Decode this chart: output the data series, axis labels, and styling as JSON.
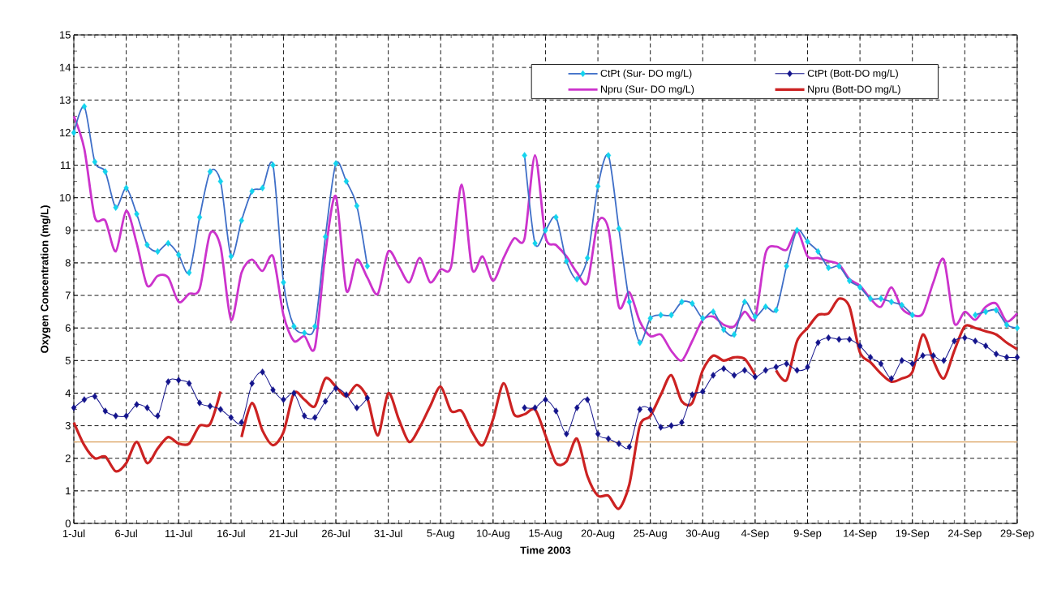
{
  "chart_data": {
    "type": "line",
    "xlabel": "Time 2003",
    "ylabel": "Oxygen Concentration (mg/L)",
    "x": [
      "2003-07-01",
      "2003-07-02",
      "2003-07-03",
      "2003-07-04",
      "2003-07-05",
      "2003-07-06",
      "2003-07-07",
      "2003-07-08",
      "2003-07-09",
      "2003-07-10",
      "2003-07-11",
      "2003-07-12",
      "2003-07-13",
      "2003-07-14",
      "2003-07-15",
      "2003-07-16",
      "2003-07-17",
      "2003-07-18",
      "2003-07-19",
      "2003-07-20",
      "2003-07-21",
      "2003-07-22",
      "2003-07-23",
      "2003-07-24",
      "2003-07-25",
      "2003-07-26",
      "2003-07-27",
      "2003-07-28",
      "2003-07-29",
      "2003-07-30",
      "2003-07-31",
      "2003-08-01",
      "2003-08-02",
      "2003-08-03",
      "2003-08-04",
      "2003-08-05",
      "2003-08-06",
      "2003-08-07",
      "2003-08-08",
      "2003-08-09",
      "2003-08-10",
      "2003-08-11",
      "2003-08-12",
      "2003-08-13",
      "2003-08-14",
      "2003-08-15",
      "2003-08-16",
      "2003-08-17",
      "2003-08-18",
      "2003-08-19",
      "2003-08-20",
      "2003-08-21",
      "2003-08-22",
      "2003-08-23",
      "2003-08-24",
      "2003-08-25",
      "2003-08-26",
      "2003-08-27",
      "2003-08-28",
      "2003-08-29",
      "2003-08-30",
      "2003-08-31",
      "2003-09-01",
      "2003-09-02",
      "2003-09-03",
      "2003-09-04",
      "2003-09-05",
      "2003-09-06",
      "2003-09-07",
      "2003-09-08",
      "2003-09-09",
      "2003-09-10",
      "2003-09-11",
      "2003-09-12",
      "2003-09-13",
      "2003-09-14",
      "2003-09-15",
      "2003-09-16",
      "2003-09-17",
      "2003-09-18",
      "2003-09-19",
      "2003-09-20",
      "2003-09-21",
      "2003-09-22",
      "2003-09-23",
      "2003-09-24",
      "2003-09-25",
      "2003-09-26",
      "2003-09-27",
      "2003-09-28",
      "2003-09-29"
    ],
    "xlim": [
      "2003-07-01",
      "2003-09-29"
    ],
    "xticks": [
      {
        "value": "2003-07-01",
        "label": "1-Jul"
      },
      {
        "value": "2003-07-06",
        "label": "6-Jul"
      },
      {
        "value": "2003-07-11",
        "label": "11-Jul"
      },
      {
        "value": "2003-07-16",
        "label": "16-Jul"
      },
      {
        "value": "2003-07-21",
        "label": "21-Jul"
      },
      {
        "value": "2003-07-26",
        "label": "26-Jul"
      },
      {
        "value": "2003-07-31",
        "label": "31-Jul"
      },
      {
        "value": "2003-08-05",
        "label": "5-Aug"
      },
      {
        "value": "2003-08-10",
        "label": "10-Aug"
      },
      {
        "value": "2003-08-15",
        "label": "15-Aug"
      },
      {
        "value": "2003-08-20",
        "label": "20-Aug"
      },
      {
        "value": "2003-08-25",
        "label": "25-Aug"
      },
      {
        "value": "2003-08-30",
        "label": "30-Aug"
      },
      {
        "value": "2003-09-04",
        "label": "4-Sep"
      },
      {
        "value": "2003-09-09",
        "label": "9-Sep"
      },
      {
        "value": "2003-09-14",
        "label": "14-Sep"
      },
      {
        "value": "2003-09-19",
        "label": "19-Sep"
      },
      {
        "value": "2003-09-24",
        "label": "24-Sep"
      },
      {
        "value": "2003-09-29",
        "label": "29-Sep"
      }
    ],
    "ylim": [
      0,
      15
    ],
    "yticks": [
      0,
      1,
      2,
      3,
      4,
      5,
      6,
      7,
      8,
      9,
      10,
      11,
      12,
      13,
      14,
      15
    ],
    "grid": true,
    "legend": "top right",
    "series": [
      {
        "name": "CtPt (Sur- DO mg/L)",
        "color": "#3f6fc8",
        "marker": "diamond",
        "values": [
          12.0,
          12.8,
          11.1,
          10.8,
          9.7,
          10.3,
          9.5,
          8.55,
          8.35,
          8.6,
          8.25,
          7.7,
          9.4,
          10.8,
          10.5,
          8.2,
          9.3,
          10.2,
          10.3,
          11.0,
          7.4,
          6.05,
          5.85,
          6.05,
          8.8,
          11.05,
          10.5,
          9.75,
          7.9,
          null,
          null,
          null,
          null,
          null,
          null,
          null,
          null,
          null,
          null,
          null,
          null,
          null,
          null,
          11.3,
          8.6,
          9.0,
          9.4,
          8.05,
          7.5,
          8.15,
          10.35,
          11.3,
          9.05,
          6.8,
          5.55,
          6.3,
          6.4,
          6.4,
          6.8,
          6.75,
          6.3,
          6.5,
          5.95,
          5.8,
          6.8,
          6.35,
          6.65,
          6.55,
          7.9,
          9.0,
          8.65,
          8.35,
          7.85,
          7.9,
          7.45,
          7.25,
          6.9,
          6.9,
          6.8,
          6.7,
          6.4,
          null,
          null,
          null,
          null,
          null,
          6.4,
          6.5,
          6.55,
          6.1,
          6.0
        ]
      },
      {
        "name": "CtPt (Bott-DO mg/L)",
        "color": "#14148c",
        "marker": "diamond",
        "values": [
          3.55,
          3.8,
          3.9,
          3.45,
          3.3,
          3.3,
          3.65,
          3.55,
          3.3,
          4.35,
          4.4,
          4.3,
          3.7,
          3.6,
          3.5,
          3.25,
          3.1,
          4.3,
          4.65,
          4.1,
          3.8,
          4.0,
          3.3,
          3.25,
          3.75,
          4.15,
          3.95,
          3.55,
          3.85,
          null,
          null,
          null,
          null,
          null,
          null,
          null,
          null,
          null,
          null,
          null,
          null,
          null,
          null,
          3.55,
          3.55,
          3.8,
          3.45,
          2.75,
          3.55,
          3.8,
          2.75,
          2.6,
          2.45,
          2.35,
          3.5,
          3.5,
          2.95,
          3.0,
          3.1,
          3.95,
          4.05,
          4.55,
          4.75,
          4.55,
          4.7,
          4.5,
          4.7,
          4.8,
          4.9,
          4.7,
          4.8,
          5.55,
          5.7,
          5.65,
          5.65,
          5.45,
          5.1,
          4.9,
          4.45,
          5.0,
          4.9,
          5.15,
          5.15,
          5.0,
          5.6,
          5.7,
          5.6,
          5.45,
          5.2,
          5.1,
          5.1
        ]
      },
      {
        "name": "Npru (Sur- DO mg/L)",
        "color": "#cc33cc",
        "marker": "none",
        "values": [
          12.5,
          11.5,
          9.4,
          9.3,
          8.35,
          9.6,
          8.6,
          7.3,
          7.6,
          7.55,
          6.8,
          7.05,
          7.2,
          8.9,
          8.5,
          6.25,
          7.7,
          8.1,
          7.75,
          8.2,
          6.4,
          5.6,
          5.75,
          5.4,
          8.3,
          10.05,
          7.15,
          8.1,
          7.55,
          7.05,
          8.35,
          7.9,
          7.4,
          8.15,
          7.4,
          7.8,
          7.9,
          10.4,
          7.8,
          8.2,
          7.45,
          8.15,
          8.75,
          8.75,
          11.3,
          8.8,
          8.55,
          8.2,
          7.7,
          7.4,
          9.25,
          9.05,
          6.65,
          7.1,
          6.2,
          5.75,
          5.8,
          5.3,
          5.0,
          5.6,
          6.25,
          6.35,
          6.1,
          6.05,
          6.5,
          6.3,
          8.3,
          8.5,
          8.4,
          9.0,
          8.2,
          8.15,
          8.05,
          7.95,
          7.5,
          7.3,
          6.9,
          6.65,
          7.25,
          6.6,
          6.4,
          6.45,
          7.4,
          8.1,
          6.15,
          6.5,
          6.25,
          6.65,
          6.75,
          6.2,
          6.45
        ]
      },
      {
        "name": "Npru (Bott-DO mg/L)",
        "color": "#cc2222",
        "marker": "none",
        "values": [
          3.1,
          2.4,
          2.0,
          2.05,
          1.6,
          1.85,
          2.5,
          1.85,
          2.3,
          2.65,
          2.45,
          2.45,
          3.0,
          3.05,
          4.05,
          null,
          2.65,
          3.7,
          2.85,
          2.4,
          2.8,
          4.0,
          3.8,
          3.6,
          4.45,
          4.2,
          3.9,
          4.25,
          3.85,
          2.7,
          4.0,
          3.2,
          2.5,
          2.95,
          3.6,
          4.2,
          3.45,
          3.45,
          2.8,
          2.4,
          3.2,
          4.3,
          3.35,
          3.35,
          3.5,
          2.7,
          1.85,
          1.9,
          2.6,
          1.45,
          0.85,
          0.85,
          0.45,
          1.2,
          3.0,
          3.3,
          3.95,
          4.55,
          3.75,
          3.7,
          4.7,
          5.15,
          5.0,
          5.1,
          5.05,
          4.55,
          null,
          4.7,
          4.4,
          5.6,
          6.0,
          6.4,
          6.45,
          6.9,
          6.65,
          5.25,
          4.95,
          4.6,
          4.35,
          4.45,
          4.65,
          5.8,
          5.0,
          4.45,
          5.3,
          6.05,
          6.0,
          5.9,
          5.8,
          5.55,
          5.35
        ]
      }
    ],
    "ref_lines": [
      {
        "axis": "y",
        "value": 2.5,
        "color": "#d9a05b"
      }
    ]
  }
}
